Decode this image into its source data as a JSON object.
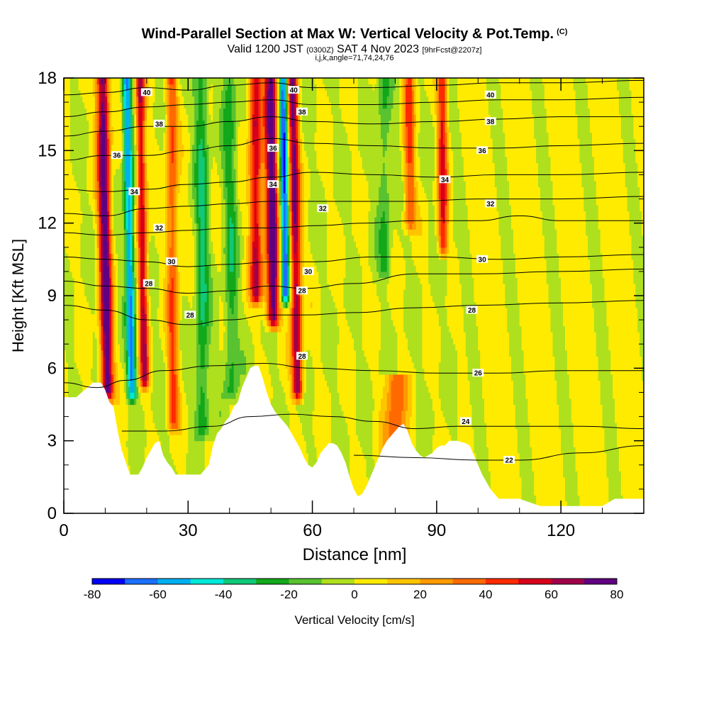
{
  "header": {
    "title_main": "Wind-Parallel Section at Max W: Vertical Velocity & Pot.Temp.",
    "title_mark": "(C)",
    "valid_a": "Valid 1200 JST",
    "valid_utc": "(0300Z)",
    "valid_b": "SAT 4 Nov 2023",
    "valid_fcst": "[9hrFcst@2207z]",
    "ijk_line": "i,j,k,angle=71,74,24,76"
  },
  "chart_data": {
    "type": "contour-section",
    "xlabel": "Distance [nm]",
    "ylabel": "Height [Kft MSL]",
    "xlim": [
      0,
      140
    ],
    "ylim": [
      0,
      18
    ],
    "x_ticks": [
      "0",
      "30",
      "60",
      "90",
      "120"
    ],
    "y_ticks": [
      "0",
      "3",
      "6",
      "9",
      "12",
      "15",
      "18"
    ],
    "colorbar": {
      "label": "Vertical Velocity [cm/s]",
      "tick_labels": [
        "-80",
        "-60",
        "-40",
        "-20",
        "0",
        "20",
        "40",
        "60",
        "80"
      ],
      "levels": [
        -80,
        -70,
        -60,
        -50,
        -40,
        -30,
        -20,
        -10,
        0,
        10,
        20,
        30,
        40,
        50,
        60,
        70,
        80
      ],
      "colors": [
        "#0000f5",
        "#1c70ff",
        "#00b0f0",
        "#00e8d8",
        "#10c878",
        "#12a81a",
        "#58c230",
        "#aee01e",
        "#ffeb00",
        "#ffc400",
        "#ff9a00",
        "#ff6a00",
        "#ff2a00",
        "#d8001a",
        "#a0004a",
        "#600080"
      ]
    },
    "terrain": [
      [
        0,
        4.8
      ],
      [
        3,
        4.8
      ],
      [
        5,
        5.1
      ],
      [
        7,
        5.4
      ],
      [
        9,
        5.4
      ],
      [
        10,
        5.1
      ],
      [
        11,
        4.6
      ],
      [
        12,
        4.4
      ],
      [
        13,
        3.4
      ],
      [
        14,
        2.6
      ],
      [
        15,
        2.1
      ],
      [
        16,
        1.6
      ],
      [
        18,
        1.6
      ],
      [
        19,
        1.9
      ],
      [
        20,
        2.3
      ],
      [
        21,
        2.6
      ],
      [
        22,
        2.9
      ],
      [
        23,
        3.0
      ],
      [
        24,
        2.4
      ],
      [
        25,
        2.1
      ],
      [
        26,
        1.9
      ],
      [
        27,
        1.6
      ],
      [
        30,
        1.6
      ],
      [
        33,
        1.6
      ],
      [
        35,
        2.0
      ],
      [
        36,
        2.8
      ],
      [
        37,
        3.3
      ],
      [
        38,
        3.5
      ],
      [
        39,
        3.8
      ],
      [
        40,
        4.0
      ],
      [
        41,
        4.4
      ],
      [
        42,
        4.6
      ],
      [
        43,
        5.2
      ],
      [
        44,
        5.6
      ],
      [
        45,
        6.0
      ],
      [
        46,
        6.1
      ],
      [
        47,
        6.1
      ],
      [
        48,
        5.6
      ],
      [
        49,
        5.0
      ],
      [
        50,
        4.5
      ],
      [
        51,
        4.2
      ],
      [
        52,
        4.0
      ],
      [
        53,
        3.8
      ],
      [
        54,
        3.6
      ],
      [
        55,
        3.3
      ],
      [
        56,
        3.0
      ],
      [
        57,
        2.7
      ],
      [
        58,
        2.3
      ],
      [
        59,
        2.0
      ],
      [
        60,
        1.9
      ],
      [
        61,
        2.1
      ],
      [
        62,
        2.5
      ],
      [
        63,
        2.7
      ],
      [
        64,
        2.9
      ],
      [
        65,
        2.9
      ],
      [
        66,
        2.8
      ],
      [
        67,
        2.5
      ],
      [
        68,
        2.1
      ],
      [
        69,
        1.5
      ],
      [
        70,
        1.0
      ],
      [
        71,
        0.7
      ],
      [
        72,
        0.8
      ],
      [
        73,
        1.1
      ],
      [
        74,
        1.5
      ],
      [
        75,
        1.9
      ],
      [
        76,
        2.3
      ],
      [
        77,
        2.7
      ],
      [
        78,
        3.0
      ],
      [
        79,
        3.2
      ],
      [
        80,
        3.4
      ],
      [
        81,
        3.6
      ],
      [
        82,
        3.7
      ],
      [
        83,
        3.4
      ],
      [
        84,
        2.9
      ],
      [
        85,
        2.6
      ],
      [
        86,
        2.4
      ],
      [
        87,
        2.3
      ],
      [
        88,
        2.4
      ],
      [
        89,
        2.5
      ],
      [
        90,
        2.7
      ],
      [
        91,
        2.8
      ],
      [
        92,
        2.8
      ],
      [
        93,
        3.0
      ],
      [
        94,
        3.0
      ],
      [
        95,
        3.0
      ],
      [
        97,
        2.9
      ],
      [
        98,
        2.8
      ],
      [
        99,
        2.4
      ],
      [
        100,
        2.0
      ],
      [
        101,
        1.6
      ],
      [
        102,
        1.3
      ],
      [
        103,
        1.0
      ],
      [
        104,
        0.8
      ],
      [
        105,
        0.6
      ],
      [
        107,
        0.6
      ],
      [
        110,
        0.6
      ],
      [
        115,
        0.3
      ],
      [
        120,
        0.3
      ],
      [
        123,
        0.3
      ],
      [
        125,
        0.3
      ],
      [
        130,
        0.3
      ],
      [
        133,
        0.6
      ],
      [
        137,
        0.6
      ],
      [
        140,
        0.6
      ]
    ],
    "isentropes": [
      {
        "value": 22,
        "label": "22",
        "pts": [
          [
            70,
            2.4
          ],
          [
            85,
            2.3
          ],
          [
            100,
            2.2
          ],
          [
            110,
            2.2
          ],
          [
            125,
            2.5
          ],
          [
            140,
            2.8
          ]
        ]
      },
      {
        "value": 24,
        "label": "24",
        "pts": [
          [
            14,
            3.4
          ],
          [
            24,
            3.4
          ],
          [
            36,
            3.6
          ],
          [
            45,
            4.0
          ],
          [
            55,
            4.1
          ],
          [
            65,
            4.0
          ],
          [
            75,
            3.8
          ],
          [
            85,
            3.5
          ],
          [
            95,
            3.6
          ],
          [
            110,
            3.6
          ],
          [
            125,
            3.6
          ],
          [
            140,
            3.5
          ]
        ]
      },
      {
        "value": 26,
        "label": "26",
        "pts": [
          [
            0,
            5.4
          ],
          [
            8,
            5.2
          ],
          [
            15,
            5.5
          ],
          [
            24,
            5.9
          ],
          [
            36,
            6.1
          ],
          [
            48,
            6.2
          ],
          [
            60,
            6.0
          ],
          [
            75,
            5.9
          ],
          [
            90,
            5.8
          ],
          [
            105,
            5.8
          ],
          [
            120,
            5.9
          ],
          [
            140,
            5.9
          ]
        ]
      },
      {
        "value": 28,
        "label": "28",
        "pts": [
          [
            0,
            8.6
          ],
          [
            10,
            8.4
          ],
          [
            20,
            8.0
          ],
          [
            30,
            7.8
          ],
          [
            40,
            8.0
          ],
          [
            50,
            8.2
          ],
          [
            58,
            8.2
          ],
          [
            70,
            8.3
          ],
          [
            85,
            8.5
          ],
          [
            100,
            8.6
          ],
          [
            120,
            8.7
          ],
          [
            140,
            8.8
          ]
        ]
      },
      {
        "value": 28,
        "label": "28",
        "pts": [
          [
            0,
            9.6
          ],
          [
            10,
            9.4
          ],
          [
            20,
            9.3
          ],
          [
            30,
            9.1
          ],
          [
            40,
            9.2
          ],
          [
            50,
            9.4
          ],
          [
            58,
            9.3
          ],
          [
            70,
            9.5
          ],
          [
            85,
            9.9
          ],
          [
            100,
            9.9
          ],
          [
            120,
            10.0
          ],
          [
            140,
            10.1
          ]
        ]
      },
      {
        "value": 30,
        "label": "30",
        "pts": [
          [
            0,
            10.6
          ],
          [
            10,
            10.5
          ],
          [
            20,
            10.4
          ],
          [
            30,
            10.2
          ],
          [
            40,
            10.3
          ],
          [
            50,
            10.4
          ],
          [
            60,
            10.4
          ],
          [
            75,
            10.6
          ],
          [
            90,
            10.6
          ],
          [
            105,
            10.5
          ],
          [
            120,
            10.6
          ],
          [
            140,
            10.7
          ]
        ]
      },
      {
        "value": 32,
        "label": "32",
        "pts": [
          [
            0,
            11.6
          ],
          [
            10,
            11.5
          ],
          [
            20,
            11.6
          ],
          [
            30,
            11.7
          ],
          [
            40,
            11.8
          ],
          [
            50,
            11.8
          ],
          [
            62,
            11.9
          ],
          [
            72,
            12.0
          ],
          [
            85,
            12.1
          ],
          [
            100,
            12.1
          ],
          [
            110,
            12.3
          ],
          [
            120,
            12.1
          ],
          [
            140,
            12.1
          ]
        ]
      },
      {
        "value": 32,
        "label": "32",
        "pts": [
          [
            0,
            12.4
          ],
          [
            10,
            12.3
          ],
          [
            20,
            12.6
          ],
          [
            30,
            12.7
          ],
          [
            40,
            12.8
          ],
          [
            50,
            12.9
          ],
          [
            62,
            12.9
          ],
          [
            72,
            12.9
          ],
          [
            85,
            12.9
          ],
          [
            100,
            13.0
          ],
          [
            120,
            13.0
          ],
          [
            140,
            13.1
          ]
        ]
      },
      {
        "value": 34,
        "label": "34",
        "pts": [
          [
            0,
            13.4
          ],
          [
            10,
            13.3
          ],
          [
            20,
            13.4
          ],
          [
            30,
            13.6
          ],
          [
            40,
            13.7
          ],
          [
            50,
            13.9
          ],
          [
            60,
            14.1
          ],
          [
            75,
            14.0
          ],
          [
            90,
            13.9
          ],
          [
            105,
            14.0
          ],
          [
            120,
            14.0
          ],
          [
            140,
            14.1
          ]
        ]
      },
      {
        "value": 36,
        "label": "36",
        "pts": [
          [
            0,
            14.6
          ],
          [
            10,
            14.8
          ],
          [
            20,
            14.8
          ],
          [
            30,
            15.0
          ],
          [
            40,
            15.2
          ],
          [
            50,
            15.5
          ],
          [
            60,
            15.3
          ],
          [
            75,
            15.2
          ],
          [
            90,
            15.1
          ],
          [
            105,
            15.1
          ],
          [
            120,
            15.2
          ],
          [
            140,
            15.3
          ]
        ]
      },
      {
        "value": 38,
        "label": "38",
        "pts": [
          [
            0,
            15.6
          ],
          [
            10,
            15.8
          ],
          [
            20,
            16.0
          ],
          [
            30,
            16.0
          ],
          [
            40,
            16.2
          ],
          [
            50,
            16.4
          ],
          [
            60,
            16.2
          ],
          [
            75,
            16.1
          ],
          [
            90,
            16.2
          ],
          [
            105,
            16.3
          ],
          [
            120,
            16.4
          ],
          [
            140,
            16.4
          ]
        ]
      },
      {
        "value": 38,
        "label": "38",
        "pts": [
          [
            0,
            16.4
          ],
          [
            10,
            16.6
          ],
          [
            20,
            16.8
          ],
          [
            30,
            16.9
          ],
          [
            40,
            17.0
          ],
          [
            50,
            17.1
          ],
          [
            60,
            16.9
          ],
          [
            75,
            16.9
          ],
          [
            90,
            17.0
          ],
          [
            105,
            17.1
          ],
          [
            120,
            17.1
          ],
          [
            140,
            17.2
          ]
        ]
      },
      {
        "value": 40,
        "label": "40",
        "pts": [
          [
            0,
            17.3
          ],
          [
            10,
            17.4
          ],
          [
            20,
            17.6
          ],
          [
            30,
            17.5
          ],
          [
            40,
            17.7
          ],
          [
            50,
            17.8
          ],
          [
            60,
            17.6
          ],
          [
            75,
            17.6
          ],
          [
            90,
            17.7
          ],
          [
            105,
            17.8
          ],
          [
            120,
            17.8
          ],
          [
            140,
            17.9
          ]
        ]
      }
    ],
    "contour_labels": [
      {
        "text": "40",
        "x": 20,
        "y": 17.4
      },
      {
        "text": "38",
        "x": 23,
        "y": 16.1
      },
      {
        "text": "36",
        "x": 12.8,
        "y": 14.8
      },
      {
        "text": "34",
        "x": 17,
        "y": 13.3
      },
      {
        "text": "32",
        "x": 23,
        "y": 11.8
      },
      {
        "text": "30",
        "x": 26,
        "y": 10.4
      },
      {
        "text": "28",
        "x": 20.5,
        "y": 9.5
      },
      {
        "text": "28",
        "x": 30.5,
        "y": 8.2
      },
      {
        "text": "40",
        "x": 55.5,
        "y": 17.5
      },
      {
        "text": "38",
        "x": 57.5,
        "y": 16.6
      },
      {
        "text": "36",
        "x": 50.5,
        "y": 15.1
      },
      {
        "text": "34",
        "x": 50.5,
        "y": 13.6
      },
      {
        "text": "32",
        "x": 62.5,
        "y": 12.6
      },
      {
        "text": "30",
        "x": 59,
        "y": 10.0
      },
      {
        "text": "28",
        "x": 57.5,
        "y": 9.2
      },
      {
        "text": "28",
        "x": 57.5,
        "y": 6.5
      },
      {
        "text": "40",
        "x": 103,
        "y": 17.3
      },
      {
        "text": "38",
        "x": 103,
        "y": 16.2
      },
      {
        "text": "36",
        "x": 101,
        "y": 15.0
      },
      {
        "text": "34",
        "x": 92,
        "y": 13.8
      },
      {
        "text": "32",
        "x": 103,
        "y": 12.8
      },
      {
        "text": "30",
        "x": 101,
        "y": 10.5
      },
      {
        "text": "28",
        "x": 98.5,
        "y": 8.4
      },
      {
        "text": "26",
        "x": 100,
        "y": 5.8
      },
      {
        "text": "24",
        "x": 97,
        "y": 3.8
      },
      {
        "text": "22",
        "x": 107.5,
        "y": 2.2
      }
    ],
    "w_cores": [
      {
        "x": 10.5,
        "ylow": 5.0,
        "yhigh": 18,
        "w": 80,
        "lean": 0.9,
        "width": 1.5
      },
      {
        "x": 16.5,
        "ylow": 5.0,
        "yhigh": 18,
        "w": -60,
        "lean": 1.0,
        "width": 1.1
      },
      {
        "x": 19.5,
        "ylow": 5.5,
        "yhigh": 18,
        "w": 60,
        "lean": 0.9,
        "width": 1.1
      },
      {
        "x": 26.5,
        "ylow": 3.8,
        "yhigh": 18,
        "w": 40,
        "lean": 0.4,
        "width": 1.4
      },
      {
        "x": 33.5,
        "ylow": 3.5,
        "yhigh": 18,
        "w": -30,
        "lean": 0.2,
        "width": 1.6
      },
      {
        "x": 40.5,
        "ylow": 5.0,
        "yhigh": 18,
        "w": -25,
        "lean": 0.4,
        "width": 1.6
      },
      {
        "x": 46.5,
        "ylow": 9.0,
        "yhigh": 18,
        "w": 60,
        "lean": 0.3,
        "width": 1.5
      },
      {
        "x": 50.5,
        "ylow": 8.0,
        "yhigh": 18,
        "w": 80,
        "lean": 0.6,
        "width": 1.5
      },
      {
        "x": 53.5,
        "ylow": 9.0,
        "yhigh": 18,
        "w": -70,
        "lean": 0.6,
        "width": 1.0
      },
      {
        "x": 56.5,
        "ylow": 5.0,
        "yhigh": 18,
        "w": 70,
        "lean": 1.0,
        "width": 1.3
      },
      {
        "x": 77.5,
        "ylow": 10.0,
        "yhigh": 18,
        "w": -20,
        "lean": 0.3,
        "width": 1.6
      },
      {
        "x": 83.5,
        "ylow": 12.0,
        "yhigh": 18,
        "w": 40,
        "lean": 0.3,
        "width": 1.4
      },
      {
        "x": 91.5,
        "ylow": 11.0,
        "yhigh": 18,
        "w": 50,
        "lean": 0.2,
        "width": 1.2
      },
      {
        "x": 80,
        "ylow": 2.6,
        "yhigh": 5.8,
        "w": 40,
        "lean": 0.0,
        "width": 2.5
      }
    ]
  }
}
